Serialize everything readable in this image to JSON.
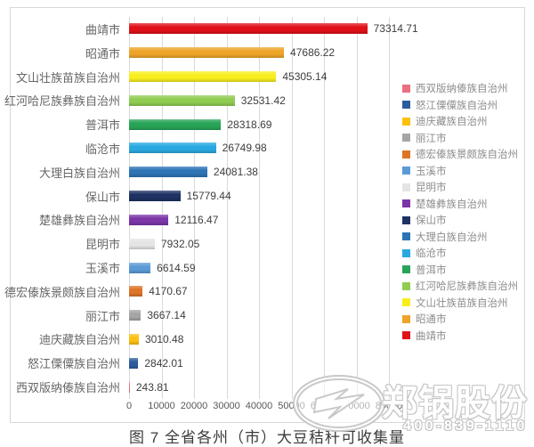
{
  "figure": {
    "title": "图 7 全省各州（市）大豆秸秆可收集量"
  },
  "chart_data": {
    "type": "bar",
    "orientation": "horizontal",
    "title": "图 7 全省各州（市）大豆秸秆可收集量",
    "categories": [
      "曲靖市",
      "昭通市",
      "文山壮族苗族自治州",
      "红河哈尼族彝族自治州",
      "普洱市",
      "临沧市",
      "大理白族自治州",
      "保山市",
      "楚雄彝族自治州",
      "昆明市",
      "玉溪市",
      "德宏傣族景颇族自治州",
      "丽江市",
      "迪庆藏族自治州",
      "怒江傈僳族自治州",
      "西双版纳傣族自治州"
    ],
    "values": [
      73314.71,
      47686.22,
      45305.14,
      32531.42,
      28318.69,
      26749.98,
      24081.38,
      15779.44,
      12116.47,
      7932.05,
      6614.59,
      4170.67,
      3667.14,
      3010.48,
      2842.01,
      243.81
    ],
    "value_labels": [
      "73314.71",
      "47686.22",
      "45305.14",
      "32531.42",
      "28318.69",
      "26749.98",
      "24081.38",
      "15779.44",
      "12116.47",
      "7932.05",
      "6614.59",
      "4170.67",
      "3667.14",
      "3010.48",
      "2842.01",
      "243.81"
    ],
    "bar_colors": [
      "#e01119",
      "#eda428",
      "#f8ee1e",
      "#90cc52",
      "#27a457",
      "#29a9e0",
      "#2d74b5",
      "#1e3263",
      "#7c36a8",
      "#e4e4e4",
      "#5b9bd5",
      "#dd7428",
      "#a5a5a5",
      "#fcc011",
      "#2d5c9c",
      "#e8707f"
    ],
    "xlim": [
      0,
      80000
    ],
    "x_ticks": [
      "0",
      "10000",
      "20000",
      "30000",
      "40000",
      "50000",
      "60000",
      "70000",
      "80000"
    ],
    "grid": "vertical",
    "gridline_color": "#d9d9d9",
    "legend_position": "right",
    "legend_entries": [
      {
        "label": "西双版纳傣族自治州",
        "color": "#e8707f"
      },
      {
        "label": "怒江傈僳族自治州",
        "color": "#2d5c9c"
      },
      {
        "label": "迪庆藏族自治州",
        "color": "#fcc011"
      },
      {
        "label": "丽江市",
        "color": "#a5a5a5"
      },
      {
        "label": "德宏傣族景颇族自治州",
        "color": "#dd7428"
      },
      {
        "label": "玉溪市",
        "color": "#5b9bd5"
      },
      {
        "label": "昆明市",
        "color": "#e4e4e4"
      },
      {
        "label": "楚雄彝族自治州",
        "color": "#7c36a8"
      },
      {
        "label": "保山市",
        "color": "#1e3263"
      },
      {
        "label": "大理白族自治州",
        "color": "#2d74b5"
      },
      {
        "label": "临沧市",
        "color": "#29a9e0"
      },
      {
        "label": "普洱市",
        "color": "#27a457"
      },
      {
        "label": "红河哈尼族彝族自治州",
        "color": "#90cc52"
      },
      {
        "label": "文山壮族苗族自治州",
        "color": "#f8ee1e"
      },
      {
        "label": "昭通市",
        "color": "#eda428"
      },
      {
        "label": "曲靖市",
        "color": "#e01119"
      }
    ]
  },
  "watermark": {
    "brand": "郑锅股份",
    "phone": "400-839-1110",
    "logo_icon": "zg-boiler-logo-icon"
  }
}
